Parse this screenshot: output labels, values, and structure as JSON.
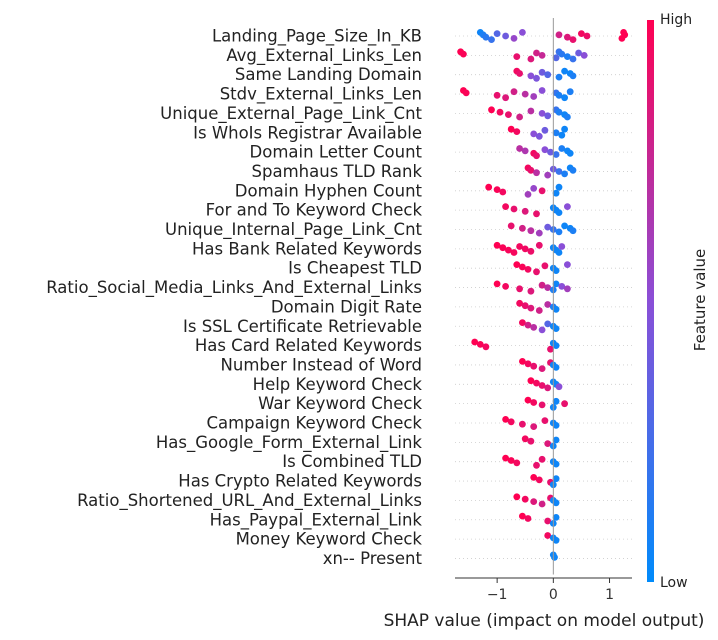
{
  "chart_data": {
    "type": "scatter",
    "title": "",
    "xlabel": "SHAP value (impact on model output)",
    "ylabel": "",
    "xlim": [
      -1.75,
      1.4
    ],
    "xticks": [
      -1,
      0,
      1
    ],
    "xtick_labels": [
      "−1",
      "0",
      "1"
    ],
    "colorbar": {
      "label": "Feature value",
      "high_label": "High",
      "low_label": "Low",
      "low_color": "#008bfb",
      "high_color": "#ff0052"
    },
    "features": [
      {
        "name": "Landing_Page_Size_In_KB",
        "points": [
          [
            -1.3,
            0.05
          ],
          [
            -1.25,
            0.1
          ],
          [
            -1.2,
            0.15
          ],
          [
            -1.1,
            0.2
          ],
          [
            -1.0,
            0.3
          ],
          [
            -0.85,
            0.4
          ],
          [
            -0.7,
            0.55
          ],
          [
            -0.55,
            0.5
          ],
          [
            0.1,
            0.8
          ],
          [
            0.25,
            0.85
          ],
          [
            0.35,
            0.9
          ],
          [
            0.5,
            0.95
          ],
          [
            0.6,
            0.92
          ],
          [
            1.22,
            1.0
          ],
          [
            1.25,
            1.0
          ],
          [
            1.27,
            1.0
          ]
        ]
      },
      {
        "name": "Avg_External_Links_Len",
        "points": [
          [
            -1.65,
            1.0
          ],
          [
            -1.6,
            0.98
          ],
          [
            -0.65,
            0.9
          ],
          [
            -0.4,
            0.85
          ],
          [
            -0.3,
            0.8
          ],
          [
            -0.2,
            0.75
          ],
          [
            0.05,
            0.3
          ],
          [
            0.1,
            0.2
          ],
          [
            0.15,
            0.15
          ],
          [
            0.25,
            0.1
          ],
          [
            0.35,
            0.2
          ],
          [
            0.45,
            0.4
          ],
          [
            0.55,
            0.5
          ]
        ]
      },
      {
        "name": "Same Landing Domain",
        "points": [
          [
            -0.65,
            0.95
          ],
          [
            -0.6,
            0.9
          ],
          [
            -0.4,
            0.5
          ],
          [
            -0.3,
            0.45
          ],
          [
            -0.2,
            0.4
          ],
          [
            -0.1,
            0.3
          ],
          [
            0.1,
            0.1
          ],
          [
            0.2,
            0.05
          ],
          [
            0.3,
            0.05
          ],
          [
            0.35,
            0.1
          ]
        ]
      },
      {
        "name": "Stdv_External_Links_Len",
        "points": [
          [
            -1.6,
            1.0
          ],
          [
            -1.55,
            0.98
          ],
          [
            -1.0,
            0.9
          ],
          [
            -0.85,
            0.85
          ],
          [
            -0.7,
            0.8
          ],
          [
            -0.5,
            0.7
          ],
          [
            -0.35,
            0.6
          ],
          [
            -0.2,
            0.5
          ],
          [
            0.05,
            0.2
          ],
          [
            0.1,
            0.1
          ],
          [
            0.2,
            0.05
          ],
          [
            0.3,
            0.1
          ]
        ]
      },
      {
        "name": "Unique_External_Page_Link_Cnt",
        "points": [
          [
            -1.1,
            1.0
          ],
          [
            -0.95,
            0.95
          ],
          [
            -0.8,
            0.9
          ],
          [
            -0.6,
            0.8
          ],
          [
            -0.4,
            0.7
          ],
          [
            -0.2,
            0.5
          ],
          [
            -0.1,
            0.4
          ],
          [
            0.05,
            0.2
          ],
          [
            0.1,
            0.1
          ],
          [
            0.2,
            0.05
          ],
          [
            0.25,
            0.1
          ]
        ]
      },
      {
        "name": "Is WhoIs Registrar Available",
        "points": [
          [
            -0.75,
            1.0
          ],
          [
            -0.65,
            0.95
          ],
          [
            -0.35,
            0.5
          ],
          [
            -0.25,
            0.45
          ],
          [
            -0.15,
            0.4
          ],
          [
            0.05,
            0.1
          ],
          [
            0.15,
            0.05
          ],
          [
            0.2,
            0.05
          ]
        ]
      },
      {
        "name": "Domain Letter Count",
        "points": [
          [
            -0.6,
            0.7
          ],
          [
            -0.5,
            0.65
          ],
          [
            -0.35,
            0.95
          ],
          [
            -0.3,
            0.9
          ],
          [
            -0.15,
            0.5
          ],
          [
            -0.05,
            0.4
          ],
          [
            0.05,
            0.2
          ],
          [
            0.15,
            0.1
          ],
          [
            0.25,
            0.05
          ],
          [
            0.3,
            0.05
          ]
        ]
      },
      {
        "name": "Spamhaus TLD Rank",
        "points": [
          [
            -0.45,
            0.95
          ],
          [
            -0.4,
            0.9
          ],
          [
            -0.3,
            0.7
          ],
          [
            -0.1,
            0.6
          ],
          [
            0.0,
            0.4
          ],
          [
            0.1,
            0.2
          ],
          [
            0.2,
            0.1
          ],
          [
            0.3,
            0.05
          ],
          [
            0.35,
            0.1
          ]
        ]
      },
      {
        "name": "Domain Hyphen Count",
        "points": [
          [
            -1.15,
            1.0
          ],
          [
            -1.0,
            0.98
          ],
          [
            -0.9,
            0.95
          ],
          [
            -0.45,
            0.6
          ],
          [
            -0.35,
            0.55
          ],
          [
            -0.2,
            0.9
          ],
          [
            0.05,
            0.05
          ],
          [
            0.1,
            0.05
          ]
        ]
      },
      {
        "name": "For and To Keyword Check",
        "points": [
          [
            -0.85,
            0.95
          ],
          [
            -0.7,
            0.9
          ],
          [
            -0.5,
            0.85
          ],
          [
            -0.3,
            0.9
          ],
          [
            0.0,
            0.05
          ],
          [
            0.05,
            0.05
          ],
          [
            0.1,
            0.05
          ],
          [
            0.25,
            0.5
          ]
        ]
      },
      {
        "name": "Unique_Internal_Page_Link_Cnt",
        "points": [
          [
            -0.75,
            0.9
          ],
          [
            -0.55,
            0.8
          ],
          [
            -0.4,
            0.7
          ],
          [
            -0.25,
            0.6
          ],
          [
            -0.1,
            0.4
          ],
          [
            0.0,
            0.2
          ],
          [
            0.1,
            0.1
          ],
          [
            0.2,
            0.05
          ],
          [
            0.3,
            0.05
          ],
          [
            0.35,
            0.1
          ]
        ]
      },
      {
        "name": "Has Bank Related Keywords",
        "points": [
          [
            -1.0,
            1.0
          ],
          [
            -0.9,
            0.98
          ],
          [
            -0.8,
            0.97
          ],
          [
            -0.7,
            0.96
          ],
          [
            -0.6,
            0.95
          ],
          [
            -0.5,
            0.94
          ],
          [
            -0.4,
            0.92
          ],
          [
            -0.25,
            0.9
          ],
          [
            0.0,
            0.05
          ],
          [
            0.05,
            0.05
          ],
          [
            0.1,
            0.05
          ],
          [
            0.15,
            0.5
          ]
        ]
      },
      {
        "name": "Is Cheapest TLD",
        "points": [
          [
            -0.65,
            1.0
          ],
          [
            -0.55,
            0.98
          ],
          [
            -0.45,
            0.95
          ],
          [
            -0.3,
            0.9
          ],
          [
            -0.15,
            0.9
          ],
          [
            0.0,
            0.05
          ],
          [
            0.05,
            0.05
          ],
          [
            0.25,
            0.5
          ]
        ]
      },
      {
        "name": "Ratio_Social_Media_Links_And_External_Links",
        "points": [
          [
            -1.0,
            1.0
          ],
          [
            -0.85,
            0.95
          ],
          [
            -0.6,
            0.9
          ],
          [
            -0.4,
            0.85
          ],
          [
            -0.2,
            0.8
          ],
          [
            -0.1,
            0.7
          ],
          [
            0.0,
            0.1
          ],
          [
            0.05,
            0.05
          ],
          [
            0.15,
            0.5
          ],
          [
            0.25,
            0.6
          ]
        ]
      },
      {
        "name": "Domain Digit Rate",
        "points": [
          [
            -0.6,
            0.95
          ],
          [
            -0.5,
            0.9
          ],
          [
            -0.4,
            0.85
          ],
          [
            -0.25,
            0.8
          ],
          [
            -0.1,
            0.7
          ],
          [
            0.0,
            0.1
          ],
          [
            0.05,
            0.05
          ]
        ]
      },
      {
        "name": "Is SSL Certificate Retrievable",
        "points": [
          [
            -0.55,
            0.95
          ],
          [
            -0.45,
            0.8
          ],
          [
            -0.35,
            0.7
          ],
          [
            -0.2,
            0.5
          ],
          [
            -0.1,
            0.3
          ],
          [
            0.0,
            0.05
          ],
          [
            0.05,
            0.05
          ]
        ]
      },
      {
        "name": "Has Card Related Keywords",
        "points": [
          [
            -1.4,
            1.0
          ],
          [
            -1.3,
            0.98
          ],
          [
            -1.2,
            0.95
          ],
          [
            -0.05,
            0.9
          ],
          [
            0.0,
            0.05
          ],
          [
            0.05,
            0.05
          ]
        ]
      },
      {
        "name": "Number Instead of Word",
        "points": [
          [
            -0.55,
            1.0
          ],
          [
            -0.45,
            0.95
          ],
          [
            -0.35,
            0.9
          ],
          [
            -0.2,
            0.85
          ],
          [
            -0.05,
            0.9
          ],
          [
            0.0,
            0.05
          ],
          [
            0.05,
            0.05
          ]
        ]
      },
      {
        "name": "Help Keyword Check",
        "points": [
          [
            -0.4,
            1.0
          ],
          [
            -0.3,
            0.95
          ],
          [
            -0.2,
            0.9
          ],
          [
            -0.1,
            0.85
          ],
          [
            0.0,
            0.05
          ],
          [
            0.05,
            0.05
          ],
          [
            0.1,
            0.5
          ]
        ]
      },
      {
        "name": "War Keyword Check",
        "points": [
          [
            -0.45,
            1.0
          ],
          [
            -0.35,
            0.95
          ],
          [
            -0.2,
            0.9
          ],
          [
            0.0,
            0.05
          ],
          [
            0.05,
            0.05
          ],
          [
            0.2,
            0.9
          ]
        ]
      },
      {
        "name": "Campaign Keyword Check",
        "points": [
          [
            -0.85,
            1.0
          ],
          [
            -0.75,
            0.95
          ],
          [
            -0.55,
            0.9
          ],
          [
            -0.35,
            0.85
          ],
          [
            -0.15,
            0.9
          ],
          [
            0.0,
            0.05
          ],
          [
            0.05,
            0.05
          ]
        ]
      },
      {
        "name": "Has_Google_Form_External_Link",
        "points": [
          [
            -0.5,
            0.95
          ],
          [
            -0.4,
            0.9
          ],
          [
            -0.1,
            0.85
          ],
          [
            0.0,
            0.05
          ],
          [
            0.05,
            0.05
          ]
        ]
      },
      {
        "name": "Is Combined TLD",
        "points": [
          [
            -0.85,
            1.0
          ],
          [
            -0.75,
            0.98
          ],
          [
            -0.65,
            0.95
          ],
          [
            -0.3,
            0.9
          ],
          [
            -0.2,
            0.9
          ],
          [
            0.0,
            0.05
          ],
          [
            0.05,
            0.05
          ]
        ]
      },
      {
        "name": "Has Crypto Related Keywords",
        "points": [
          [
            -0.35,
            1.0
          ],
          [
            -0.25,
            0.95
          ],
          [
            -0.05,
            0.9
          ],
          [
            0.0,
            0.05
          ],
          [
            0.05,
            0.05
          ]
        ]
      },
      {
        "name": "Ratio_Shortened_URL_And_External_Links",
        "points": [
          [
            -0.65,
            1.0
          ],
          [
            -0.5,
            0.95
          ],
          [
            -0.35,
            0.85
          ],
          [
            -0.2,
            0.8
          ],
          [
            -0.05,
            0.9
          ],
          [
            0.0,
            0.05
          ],
          [
            0.05,
            0.05
          ]
        ]
      },
      {
        "name": "Has_Paypal_External_Link",
        "points": [
          [
            -0.55,
            1.0
          ],
          [
            -0.45,
            0.95
          ],
          [
            -0.1,
            0.9
          ],
          [
            0.0,
            0.05
          ],
          [
            0.05,
            0.05
          ]
        ]
      },
      {
        "name": "Money Keyword Check",
        "points": [
          [
            -0.1,
            0.95
          ],
          [
            0.0,
            0.05
          ],
          [
            0.05,
            0.05
          ]
        ]
      },
      {
        "name": "xn-- Present",
        "points": [
          [
            0.0,
            0.05
          ],
          [
            0.02,
            0.05
          ]
        ]
      }
    ]
  }
}
